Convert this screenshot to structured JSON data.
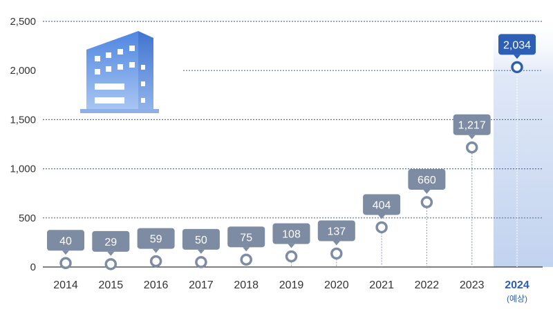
{
  "chart_data": {
    "type": "scatter",
    "title": "",
    "xlabel": "",
    "ylabel": "",
    "categories": [
      "2014",
      "2015",
      "2016",
      "2017",
      "2018",
      "2019",
      "2020",
      "2021",
      "2022",
      "2023",
      "2024"
    ],
    "category_notes": [
      "",
      "",
      "",
      "",
      "",
      "",
      "",
      "",
      "",
      "",
      "(예상)"
    ],
    "values": [
      40,
      29,
      59,
      50,
      75,
      108,
      137,
      404,
      660,
      1217,
      2034
    ],
    "value_labels": [
      "40",
      "29",
      "59",
      "50",
      "75",
      "108",
      "137",
      "404",
      "660",
      "1,217",
      "2,034"
    ],
    "ylim": [
      0,
      2500
    ],
    "yticks": [
      0,
      500,
      1000,
      1500,
      2000,
      2500
    ],
    "ytick_labels": [
      "0",
      "500",
      "1,000",
      "1,500",
      "2,000",
      "2,500"
    ],
    "grid": true,
    "legend": "none",
    "highlight_category": "2024",
    "colors": {
      "label_box": "#7d8ba3",
      "label_box_highlight": "#2d5fb4",
      "marker_stroke": "#7d8ba3",
      "marker_highlight": "#2d5fb4",
      "year_text": "#333333",
      "year_text_highlight": "#2d5fb4",
      "highlight_band": "#cddcf2",
      "grid": "#5a6f93"
    },
    "decoration_icon": "building-icon"
  }
}
